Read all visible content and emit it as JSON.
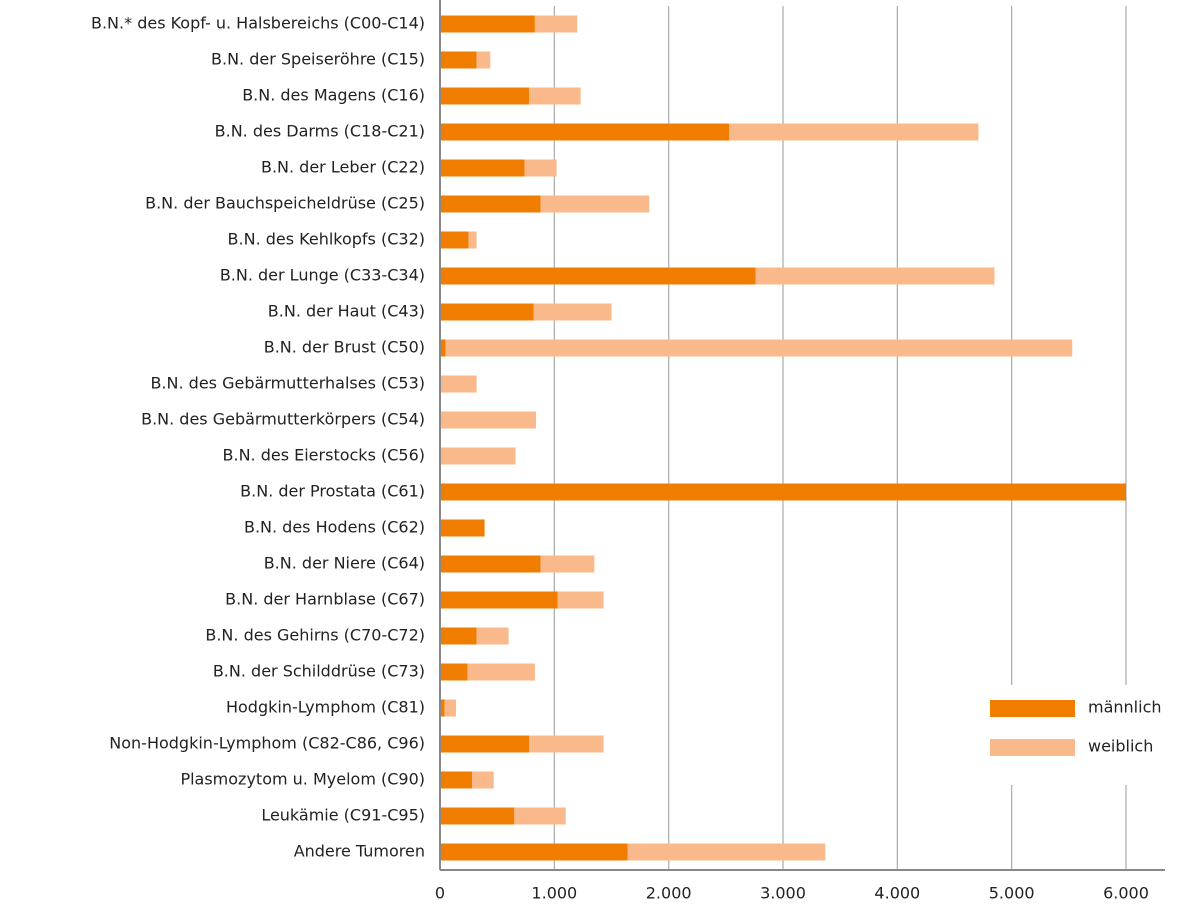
{
  "chart_data": {
    "type": "stacked-bar-horizontal",
    "categories": [
      "B.N.* des Kopf- u. Halsbereichs (C00-C14)",
      "B.N. der Speiseröhre (C15)",
      "B.N. des Magens (C16)",
      "B.N. des Darms (C18-C21)",
      "B.N. der Leber (C22)",
      "B.N. der Bauchspeicheldrüse (C25)",
      "B.N. des Kehlkopfs (C32)",
      "B.N. der Lunge (C33-C34)",
      "B.N. der Haut (C43)",
      "B.N. der Brust (C50)",
      "B.N. des Gebärmutterhalses (C53)",
      "B.N. des Gebärmutterkörpers (C54)",
      "B.N. des Eierstocks (C56)",
      "B.N. der Prostata (C61)",
      "B.N. des Hodens (C62)",
      "B.N. der Niere (C64)",
      "B.N. der Harnblase (C67)",
      "B.N. des Gehirns (C70-C72)",
      "B.N. der Schilddrüse (C73)",
      "Hodgkin-Lymphom (C81)",
      "Non-Hodgkin-Lymphom (C82-C86, C96)",
      "Plasmozytom u. Myelom (C90)",
      "Leukämie (C91-C95)",
      "Andere Tumoren"
    ],
    "series": [
      {
        "name": "männlich",
        "color": "#f07d00",
        "values": [
          830,
          320,
          780,
          2530,
          740,
          880,
          250,
          2760,
          820,
          50,
          0,
          0,
          0,
          6000,
          390,
          880,
          1030,
          320,
          240,
          40,
          780,
          280,
          650,
          1640
        ]
      },
      {
        "name": "weiblich",
        "color": "#f9b98a",
        "values": [
          370,
          120,
          450,
          2180,
          280,
          950,
          70,
          2090,
          680,
          5480,
          320,
          840,
          660,
          0,
          0,
          470,
          400,
          280,
          590,
          100,
          650,
          190,
          450,
          1730
        ]
      }
    ],
    "xlim": [
      0,
      6000
    ],
    "xticks": [
      0,
      {
        "value": 1000,
        "label": "1.000"
      },
      {
        "value": 2000,
        "label": "2.000"
      },
      {
        "value": 3000,
        "label": "3.000"
      },
      {
        "value": 4000,
        "label": "4.000"
      },
      {
        "value": 5000,
        "label": "5.000"
      },
      {
        "value": 6000,
        "label": "6.000"
      }
    ],
    "grid": true,
    "legend": "right"
  }
}
